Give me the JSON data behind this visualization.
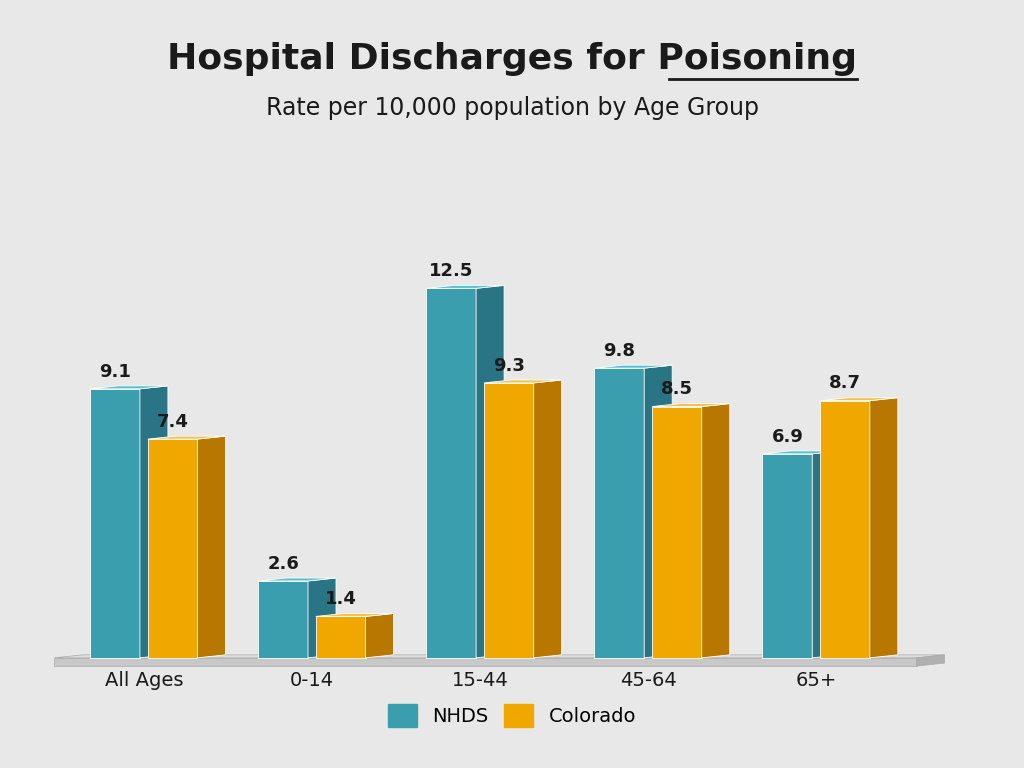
{
  "title_part1": "Hospital Discharges for ",
  "title_part2": "Poisoning",
  "subtitle": "Rate per 10,000 population by Age Group",
  "categories": [
    "All Ages",
    "0-14",
    "15-44",
    "45-64",
    "65+"
  ],
  "nhds_values": [
    9.1,
    2.6,
    12.5,
    9.8,
    6.9
  ],
  "colorado_values": [
    7.4,
    1.4,
    9.3,
    8.5,
    8.7
  ],
  "nhds_front": "#3A9EAF",
  "nhds_side": "#2A7585",
  "nhds_top": "#5ABFCF",
  "col_front": "#F0A800",
  "col_side": "#B87800",
  "col_top": "#F5C050",
  "bg": "#E8E8E8",
  "text_dark": "#1A1A1A",
  "text_med": "#444444",
  "platform_front": "#C8C8C8",
  "platform_top": "#DEDEDE",
  "platform_side": "#B0B0B0",
  "title_fs": 26,
  "sub_fs": 17,
  "label_fs": 13,
  "cat_fs": 14,
  "legend_fs": 14
}
